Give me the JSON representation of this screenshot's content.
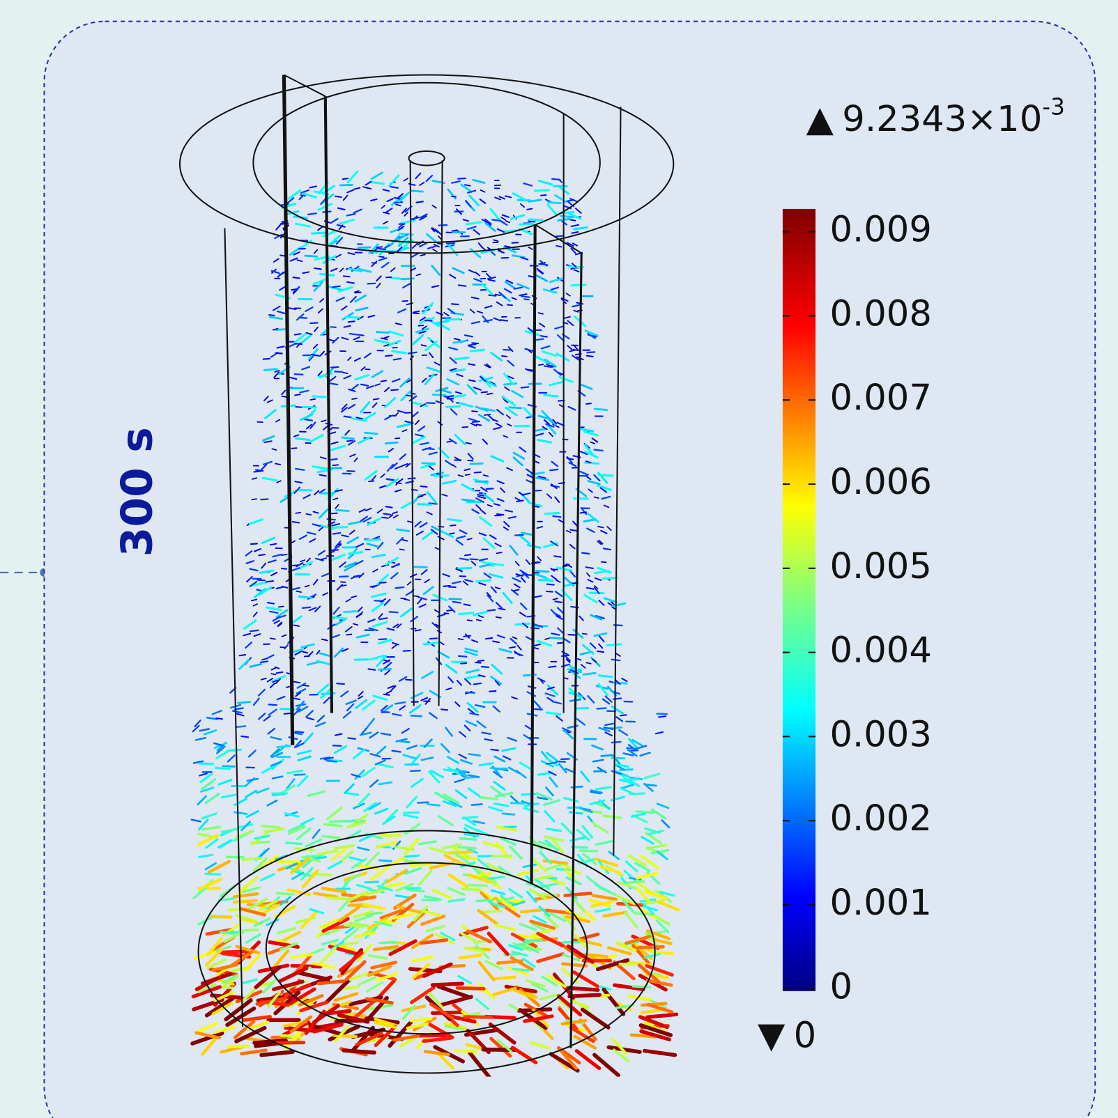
{
  "panel_label": "300 s",
  "colorbar": {
    "max_marker": "▲",
    "max_label": "9.2343×10",
    "max_exponent": "-3",
    "ticks": [
      "0.009",
      "0.008",
      "0.007",
      "0.006",
      "0.005",
      "0.004",
      "0.003",
      "0.002",
      "0.001",
      "0"
    ],
    "min_marker": "▼",
    "min_label": "0"
  }
}
